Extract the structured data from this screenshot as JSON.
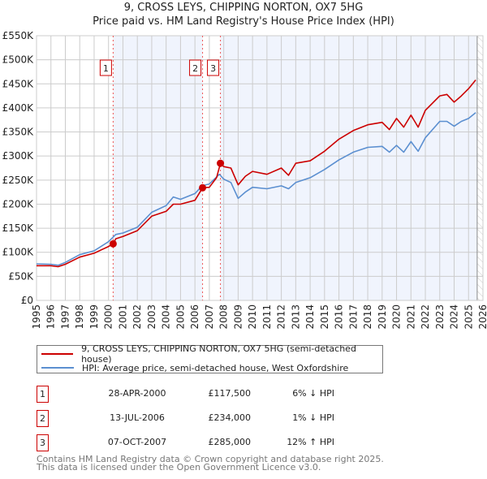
{
  "title_line1": "9, CROSS LEYS, CHIPPING NORTON, OX7 5HG",
  "title_line2": "Price paid vs. HM Land Registry's House Price Index (HPI)",
  "legend": {
    "property": "9, CROSS LEYS, CHIPPING NORTON, OX7 5HG (semi-detached house)",
    "hpi": "HPI: Average price, semi-detached house, West Oxfordshire"
  },
  "colors": {
    "property": "#cc0000",
    "hpi": "#5b8fd0",
    "shade": "#f0f4fd"
  },
  "sales": [
    {
      "num": "1",
      "date": "28-APR-2000",
      "price": "£117,500",
      "pct": "6% ↓ HPI",
      "x": 2000.32,
      "y": 117.5
    },
    {
      "num": "2",
      "date": "13-JUL-2006",
      "price": "£234,000",
      "pct": "1% ↓ HPI",
      "x": 2006.53,
      "y": 234
    },
    {
      "num": "3",
      "date": "07-OCT-2007",
      "price": "£285,000",
      "pct": "12% ↑ HPI",
      "x": 2007.77,
      "y": 285
    }
  ],
  "footer": {
    "line1": "Contains HM Land Registry data © Crown copyright and database right 2025.",
    "line2": "This data is licensed under the Open Government Licence v3.0."
  },
  "chart_data": {
    "type": "line",
    "xlim": [
      1995,
      2026
    ],
    "ylim": [
      0,
      550
    ],
    "y_ticks": [
      0,
      50,
      100,
      150,
      200,
      250,
      300,
      350,
      400,
      450,
      500,
      550
    ],
    "y_tick_labels": [
      "£0",
      "£50K",
      "£100K",
      "£150K",
      "£200K",
      "£250K",
      "£300K",
      "£350K",
      "£400K",
      "£450K",
      "£500K",
      "£550K"
    ],
    "x_ticks": [
      1995,
      1996,
      1997,
      1998,
      1999,
      2000,
      2001,
      2002,
      2003,
      2004,
      2005,
      2006,
      2007,
      2008,
      2009,
      2010,
      2011,
      2012,
      2013,
      2014,
      2015,
      2016,
      2017,
      2018,
      2019,
      2020,
      2021,
      2022,
      2023,
      2024,
      2025,
      2026
    ],
    "data_end": 2025.6,
    "grid": true,
    "series": [
      {
        "name": "hpi",
        "x": [
          1995,
          1996,
          1996.5,
          1997,
          1998,
          1999,
          2000,
          2000.5,
          2001,
          2002,
          2003,
          2004,
          2004.5,
          2005,
          2006,
          2006.5,
          2007,
          2007.7,
          2008,
          2008.5,
          2009,
          2009.5,
          2010,
          2011,
          2012,
          2012.5,
          2013,
          2014,
          2015,
          2016,
          2017,
          2018,
          2019,
          2019.5,
          2020,
          2020.5,
          2021,
          2021.5,
          2022,
          2023,
          2023.5,
          2024,
          2024.5,
          2025,
          2025.5
        ],
        "y": [
          76,
          75,
          73,
          79,
          95,
          103,
          122,
          137,
          140,
          152,
          183,
          197,
          215,
          210,
          222,
          238,
          242,
          262,
          252,
          245,
          212,
          225,
          235,
          232,
          238,
          232,
          245,
          255,
          272,
          292,
          308,
          318,
          320,
          308,
          322,
          308,
          330,
          310,
          338,
          372,
          372,
          362,
          372,
          378,
          390
        ]
      },
      {
        "name": "property",
        "x": [
          1995,
          1996,
          1996.5,
          1997,
          1998,
          1999,
          2000,
          2000.32,
          2000.5,
          2001,
          2002,
          2003,
          2004,
          2004.5,
          2005,
          2006,
          2006.53,
          2007,
          2007.5,
          2007.77,
          2008,
          2008.5,
          2009,
          2009.5,
          2010,
          2011,
          2012,
          2012.5,
          2013,
          2014,
          2015,
          2016,
          2017,
          2018,
          2019,
          2019.5,
          2020,
          2020.5,
          2021,
          2021.5,
          2022,
          2023,
          2023.5,
          2024,
          2024.5,
          2025,
          2025.5
        ],
        "y": [
          72,
          72,
          70,
          75,
          90,
          98,
          112,
          117.5,
          128,
          133,
          145,
          175,
          185,
          200,
          200,
          208,
          234,
          235,
          255,
          285,
          278,
          275,
          240,
          258,
          268,
          262,
          275,
          260,
          285,
          290,
          310,
          335,
          353,
          365,
          370,
          355,
          378,
          360,
          385,
          360,
          395,
          425,
          428,
          412,
          425,
          440,
          458
        ]
      }
    ]
  }
}
